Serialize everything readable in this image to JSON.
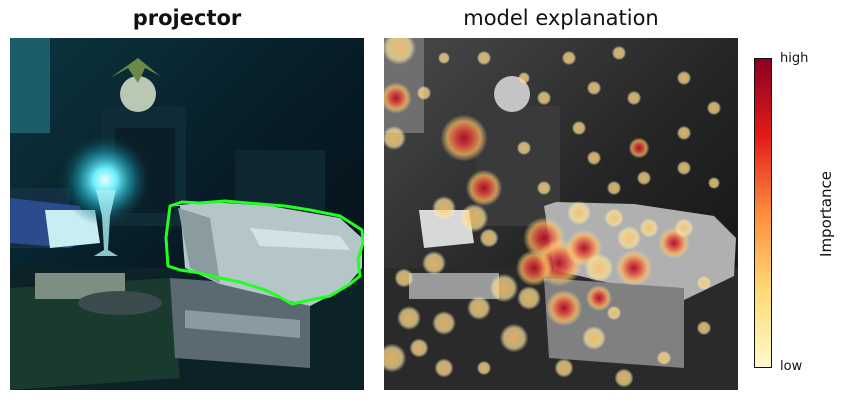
{
  "left_panel": {
    "title": "projector"
  },
  "right_panel": {
    "title": "model explanation"
  },
  "colorbar": {
    "label": "Importance",
    "tick_high": "high",
    "tick_low": "low",
    "colors": [
      "#fffacd",
      "#fed976",
      "#fd8d3c",
      "#e31a1c",
      "#8b0022"
    ]
  },
  "outline_color": "#22ff22"
}
